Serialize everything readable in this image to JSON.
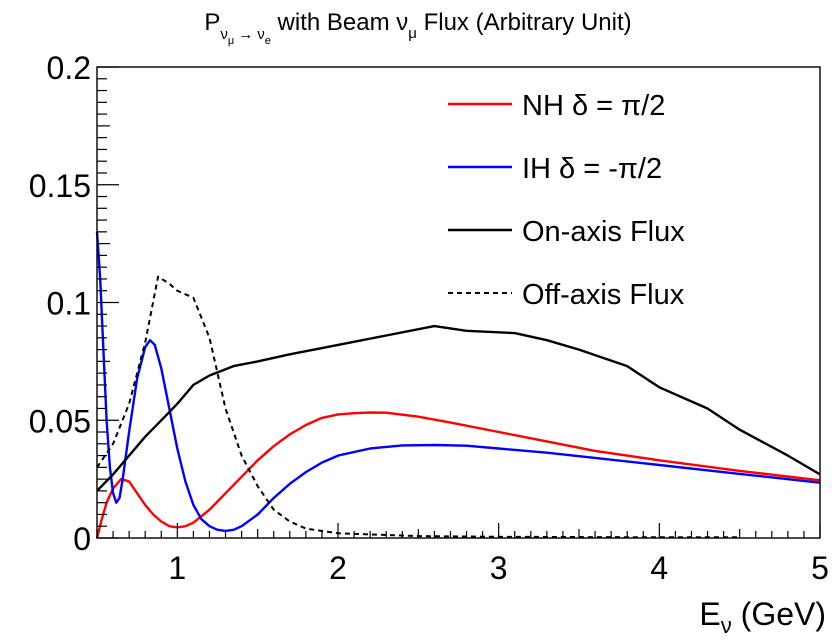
{
  "chart_data": {
    "type": "line",
    "title": "P_{ν_μ → ν_e} with Beam ν_μ Flux (Arbitrary Unit)",
    "title_parts": {
      "p": "P",
      "sub_nu": "ν",
      "sub_mu": "μ",
      "arrow": "→",
      "sub_nu2": "ν",
      "sub_e": "e",
      "rest": " with Beam ν",
      "rest_mu": "μ",
      "rest_end": " Flux (Arbitrary Unit)"
    },
    "xlabel": "E_ν (GeV)",
    "xlabel_parts": {
      "e": "E",
      "nu": "ν",
      "unit": " (GeV)"
    },
    "ylabel": "",
    "xlim": [
      0.5,
      5.0
    ],
    "ylim": [
      0,
      0.2
    ],
    "x_ticks": [
      {
        "value": 1,
        "label": "1"
      },
      {
        "value": 2,
        "label": "2"
      },
      {
        "value": 3,
        "label": "3"
      },
      {
        "value": 4,
        "label": "4"
      },
      {
        "value": 5,
        "label": "5"
      }
    ],
    "y_ticks": [
      {
        "value": 0,
        "label": "0"
      },
      {
        "value": 0.05,
        "label": "0.05"
      },
      {
        "value": 0.1,
        "label": "0.1"
      },
      {
        "value": 0.15,
        "label": "0.15"
      },
      {
        "value": 0.2,
        "label": "0.2"
      }
    ],
    "grid": false,
    "legend_position": "top-right",
    "series": [
      {
        "name": "NH δ =  π/2",
        "color": "#ff0000",
        "style": "solid",
        "points": [
          [
            0.5,
            0.0
          ],
          [
            0.53,
            0.008
          ],
          [
            0.56,
            0.015
          ],
          [
            0.6,
            0.021
          ],
          [
            0.65,
            0.025
          ],
          [
            0.7,
            0.024
          ],
          [
            0.75,
            0.019
          ],
          [
            0.8,
            0.014
          ],
          [
            0.85,
            0.01
          ],
          [
            0.9,
            0.007
          ],
          [
            0.95,
            0.005
          ],
          [
            1.0,
            0.0045
          ],
          [
            1.05,
            0.005
          ],
          [
            1.1,
            0.0065
          ],
          [
            1.2,
            0.012
          ],
          [
            1.3,
            0.019
          ],
          [
            1.4,
            0.026
          ],
          [
            1.5,
            0.033
          ],
          [
            1.6,
            0.039
          ],
          [
            1.7,
            0.044
          ],
          [
            1.8,
            0.048
          ],
          [
            1.9,
            0.051
          ],
          [
            2.0,
            0.0525
          ],
          [
            2.1,
            0.053
          ],
          [
            2.2,
            0.0533
          ],
          [
            2.3,
            0.0532
          ],
          [
            2.5,
            0.0515
          ],
          [
            2.7,
            0.049
          ],
          [
            3.0,
            0.045
          ],
          [
            3.3,
            0.041
          ],
          [
            3.6,
            0.037
          ],
          [
            4.0,
            0.033
          ],
          [
            4.5,
            0.0285
          ],
          [
            5.0,
            0.0245
          ]
        ]
      },
      {
        "name": "IH δ = -π/2",
        "color": "#0000ff",
        "style": "solid",
        "points": [
          [
            0.5,
            0.13
          ],
          [
            0.52,
            0.11
          ],
          [
            0.54,
            0.08
          ],
          [
            0.56,
            0.05
          ],
          [
            0.58,
            0.03
          ],
          [
            0.6,
            0.019
          ],
          [
            0.62,
            0.015
          ],
          [
            0.64,
            0.017
          ],
          [
            0.66,
            0.025
          ],
          [
            0.7,
            0.045
          ],
          [
            0.75,
            0.068
          ],
          [
            0.8,
            0.081
          ],
          [
            0.83,
            0.084
          ],
          [
            0.86,
            0.082
          ],
          [
            0.9,
            0.072
          ],
          [
            0.95,
            0.055
          ],
          [
            1.0,
            0.038
          ],
          [
            1.05,
            0.024
          ],
          [
            1.1,
            0.014
          ],
          [
            1.15,
            0.008
          ],
          [
            1.2,
            0.005
          ],
          [
            1.25,
            0.0035
          ],
          [
            1.3,
            0.003
          ],
          [
            1.35,
            0.0035
          ],
          [
            1.4,
            0.005
          ],
          [
            1.5,
            0.01
          ],
          [
            1.6,
            0.017
          ],
          [
            1.7,
            0.023
          ],
          [
            1.8,
            0.028
          ],
          [
            1.9,
            0.032
          ],
          [
            2.0,
            0.035
          ],
          [
            2.2,
            0.038
          ],
          [
            2.4,
            0.0393
          ],
          [
            2.6,
            0.0395
          ],
          [
            2.8,
            0.0392
          ],
          [
            3.0,
            0.038
          ],
          [
            3.3,
            0.0362
          ],
          [
            3.6,
            0.034
          ],
          [
            4.0,
            0.031
          ],
          [
            4.5,
            0.0272
          ],
          [
            5.0,
            0.0235
          ]
        ]
      },
      {
        "name": "On-axis Flux",
        "color": "#000000",
        "style": "solid",
        "points": [
          [
            0.5,
            0.02
          ],
          [
            0.6,
            0.027
          ],
          [
            0.7,
            0.035
          ],
          [
            0.8,
            0.043
          ],
          [
            0.9,
            0.05
          ],
          [
            1.0,
            0.057
          ],
          [
            1.1,
            0.065
          ],
          [
            1.2,
            0.069
          ],
          [
            1.35,
            0.073
          ],
          [
            1.5,
            0.075
          ],
          [
            1.7,
            0.078
          ],
          [
            2.0,
            0.082
          ],
          [
            2.3,
            0.086
          ],
          [
            2.6,
            0.09
          ],
          [
            2.8,
            0.088
          ],
          [
            3.1,
            0.087
          ],
          [
            3.3,
            0.084
          ],
          [
            3.5,
            0.08
          ],
          [
            3.8,
            0.073
          ],
          [
            4.0,
            0.064
          ],
          [
            4.3,
            0.055
          ],
          [
            4.5,
            0.046
          ],
          [
            4.8,
            0.035
          ],
          [
            5.0,
            0.027
          ]
        ]
      },
      {
        "name": "Off-axis Flux",
        "color": "#000000",
        "style": "dashed",
        "points": [
          [
            0.5,
            0.03
          ],
          [
            0.6,
            0.04
          ],
          [
            0.7,
            0.057
          ],
          [
            0.8,
            0.083
          ],
          [
            0.88,
            0.111
          ],
          [
            0.95,
            0.108
          ],
          [
            1.0,
            0.105
          ],
          [
            1.1,
            0.102
          ],
          [
            1.2,
            0.085
          ],
          [
            1.3,
            0.055
          ],
          [
            1.4,
            0.035
          ],
          [
            1.5,
            0.022
          ],
          [
            1.6,
            0.012
          ],
          [
            1.7,
            0.007
          ],
          [
            1.8,
            0.004
          ],
          [
            2.0,
            0.002
          ],
          [
            2.5,
            0.0008
          ],
          [
            3.0,
            0.0005
          ],
          [
            4.0,
            0.0003
          ],
          [
            4.5,
            0.0003
          ]
        ]
      }
    ],
    "legend_entries": [
      {
        "label": "NH δ =  π/2",
        "color": "#ff0000",
        "style": "solid"
      },
      {
        "label": "IH δ = -π/2",
        "color": "#0000ff",
        "style": "solid"
      },
      {
        "label": "On-axis Flux",
        "color": "#000000",
        "style": "solid"
      },
      {
        "label": "Off-axis Flux",
        "color": "#000000",
        "style": "dashed"
      }
    ]
  }
}
